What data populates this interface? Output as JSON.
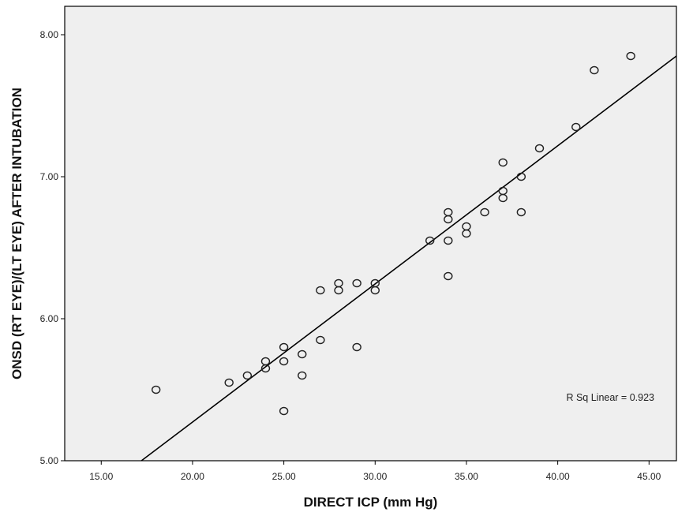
{
  "chart_data": {
    "type": "scatter",
    "xlabel": "DIRECT ICP (mm Hg)",
    "ylabel": "ONSD (RT EYE)/(LT EYE) AFTER INTUBATION",
    "xlim": [
      13.0,
      46.5
    ],
    "ylim": [
      5.0,
      8.2
    ],
    "xticks": [
      15,
      20,
      25,
      30,
      35,
      40,
      45
    ],
    "xtick_labels": [
      "15.00",
      "20.00",
      "25.00",
      "30.00",
      "35.00",
      "40.00",
      "45.00"
    ],
    "yticks": [
      5,
      6,
      7,
      8
    ],
    "ytick_labels": [
      "5.00",
      "6.00",
      "7.00",
      "8.00"
    ],
    "grid": false,
    "background": "#efefef",
    "points": [
      {
        "x": 18,
        "y": 5.5
      },
      {
        "x": 22,
        "y": 5.55
      },
      {
        "x": 23,
        "y": 5.6
      },
      {
        "x": 24,
        "y": 5.65
      },
      {
        "x": 24,
        "y": 5.7
      },
      {
        "x": 25,
        "y": 5.35
      },
      {
        "x": 25,
        "y": 5.7
      },
      {
        "x": 25,
        "y": 5.8
      },
      {
        "x": 26,
        "y": 5.6
      },
      {
        "x": 26,
        "y": 5.75
      },
      {
        "x": 27,
        "y": 5.85
      },
      {
        "x": 27,
        "y": 6.2
      },
      {
        "x": 28,
        "y": 6.2
      },
      {
        "x": 28,
        "y": 6.25
      },
      {
        "x": 29,
        "y": 5.8
      },
      {
        "x": 29,
        "y": 6.25
      },
      {
        "x": 30,
        "y": 6.2
      },
      {
        "x": 30,
        "y": 6.25
      },
      {
        "x": 33,
        "y": 6.55
      },
      {
        "x": 34,
        "y": 6.3
      },
      {
        "x": 34,
        "y": 6.55
      },
      {
        "x": 34,
        "y": 6.7
      },
      {
        "x": 34,
        "y": 6.75
      },
      {
        "x": 35,
        "y": 6.6
      },
      {
        "x": 35,
        "y": 6.65
      },
      {
        "x": 36,
        "y": 6.75
      },
      {
        "x": 37,
        "y": 6.85
      },
      {
        "x": 37,
        "y": 6.9
      },
      {
        "x": 37,
        "y": 7.1
      },
      {
        "x": 38,
        "y": 6.75
      },
      {
        "x": 38,
        "y": 7.0
      },
      {
        "x": 39,
        "y": 7.2
      },
      {
        "x": 41,
        "y": 7.35
      },
      {
        "x": 42,
        "y": 7.75
      },
      {
        "x": 44,
        "y": 7.85
      }
    ],
    "fit_line": {
      "type": "linear",
      "x": [
        17.2,
        46.5
      ],
      "y": [
        5.0,
        7.85
      ]
    },
    "annotation": "R Sq Linear = 0.923",
    "marker": "open-circle",
    "colors": {
      "marker": "#222222",
      "line": "#000000",
      "frame": "#000000"
    }
  }
}
